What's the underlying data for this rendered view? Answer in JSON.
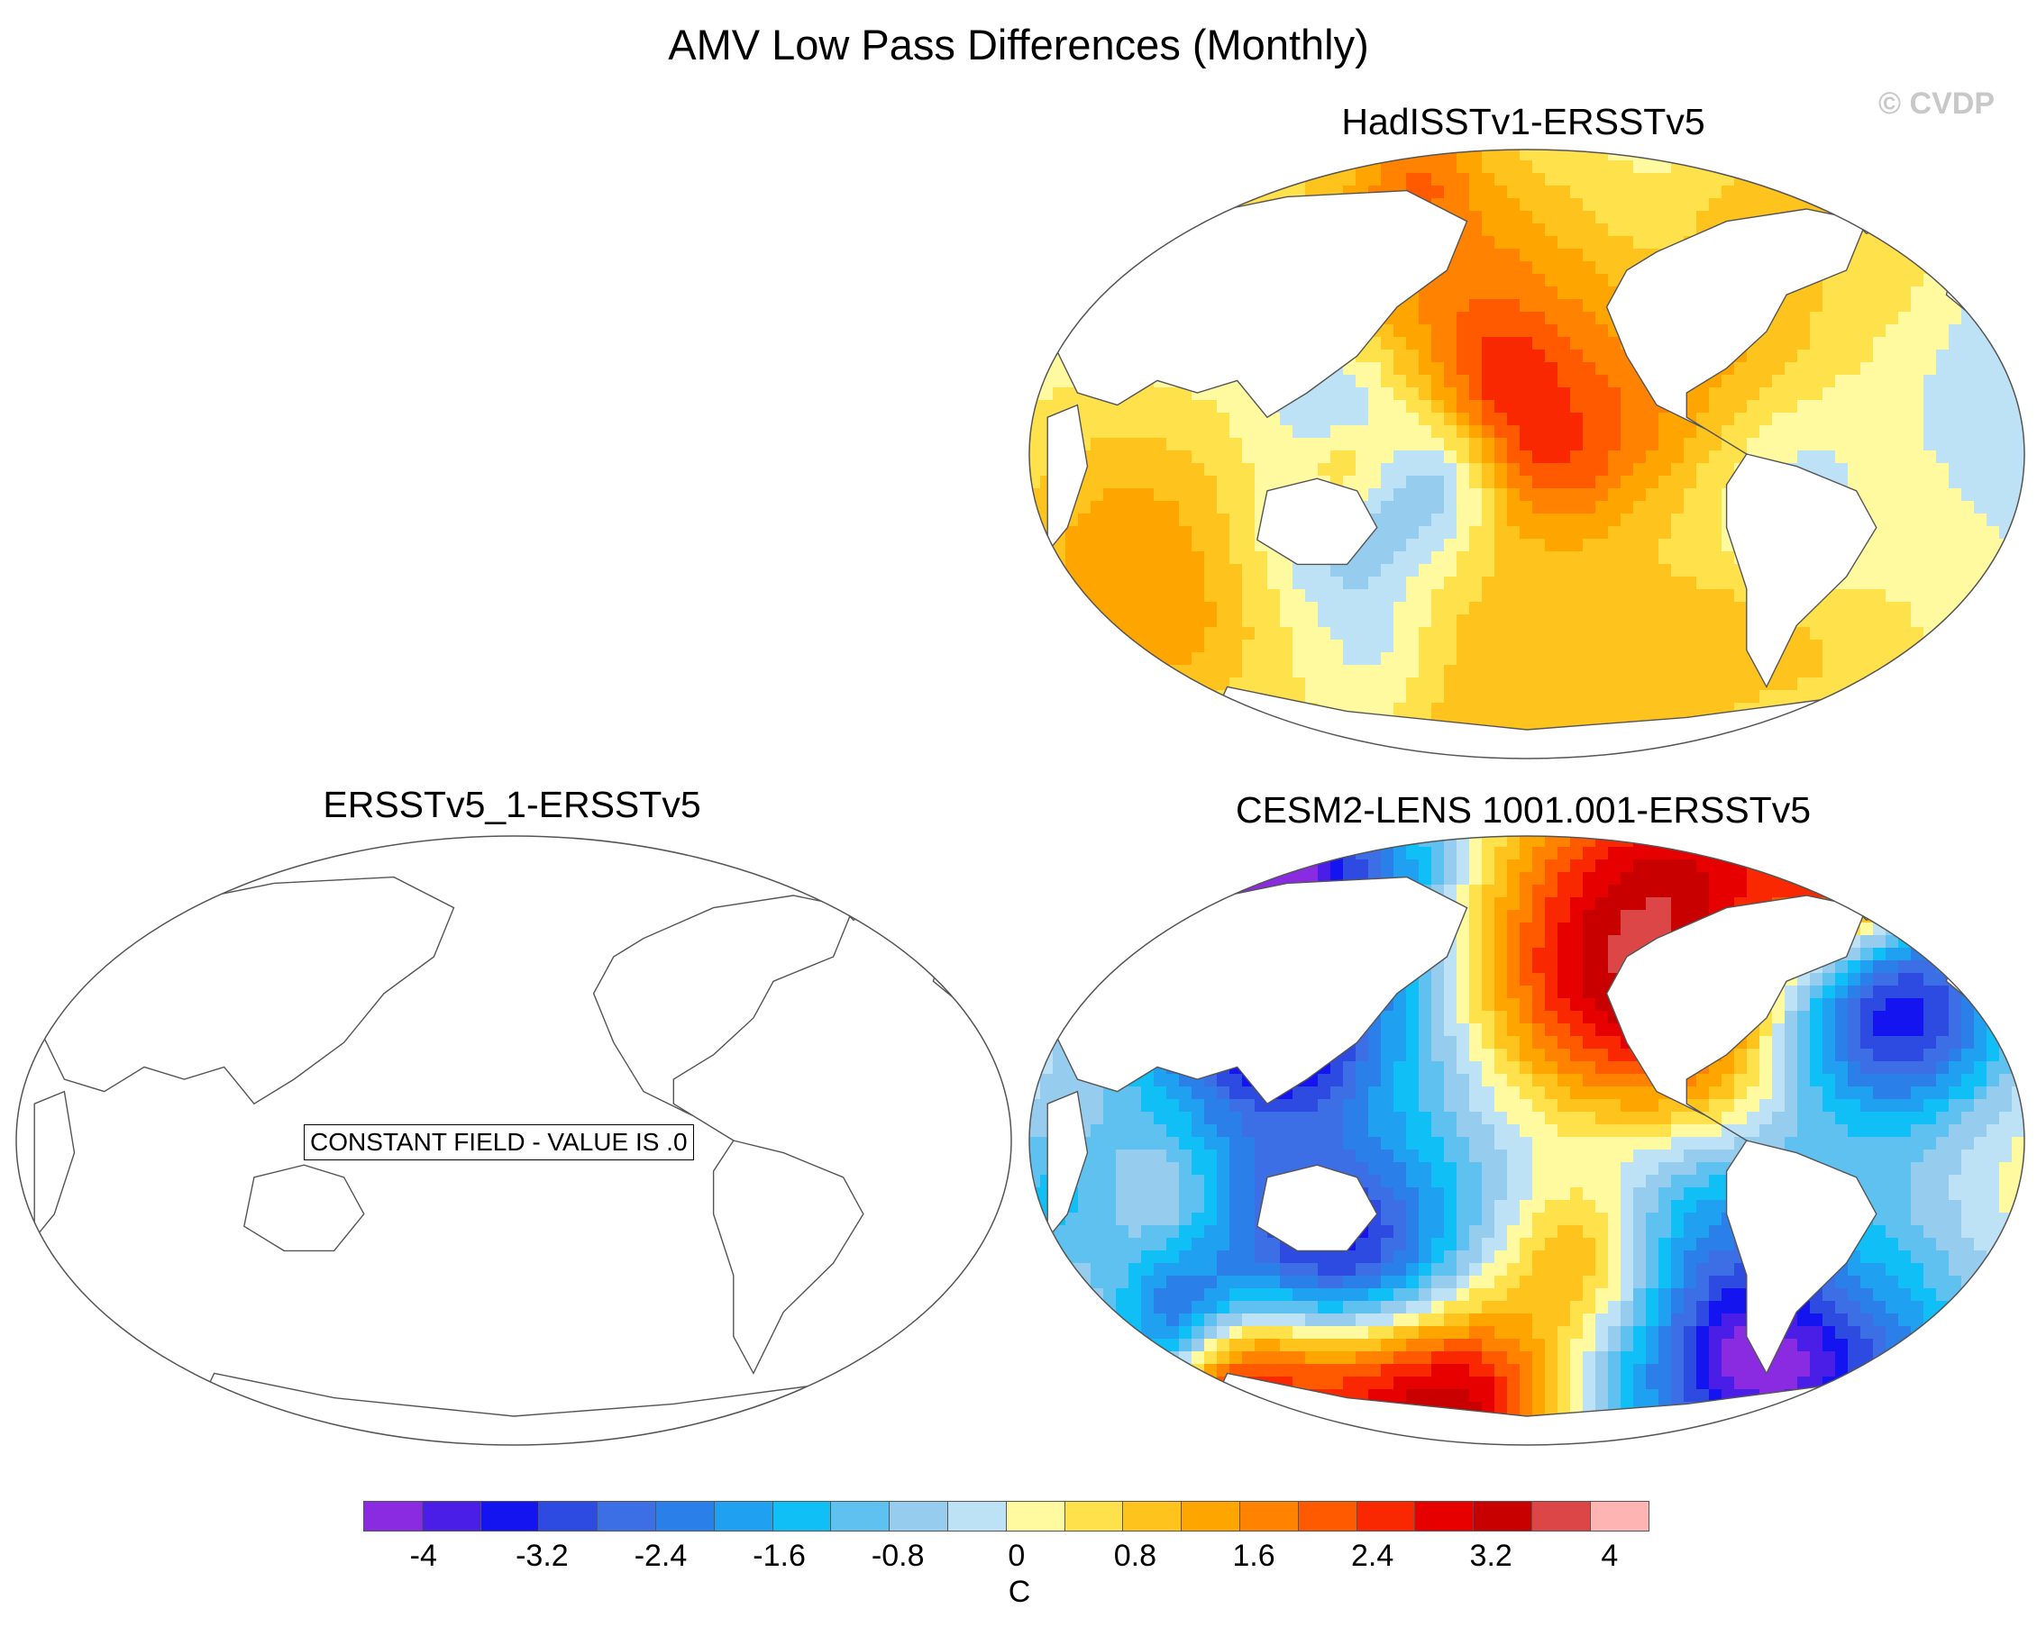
{
  "figure": {
    "title": "AMV Low Pass Differences (Monthly)",
    "watermark": "© CVDP"
  },
  "panels": [
    {
      "id": "hadisst",
      "title": "HadISSTv1-ERSSTv5",
      "field": "anomaly"
    },
    {
      "id": "ersst",
      "title": "ERSSTv5_1-ERSSTv5",
      "field": "constant",
      "note": "CONSTANT FIELD - VALUE IS .0"
    },
    {
      "id": "cesm",
      "title": "CESM2-LENS 1001.001-ERSSTv5",
      "field": "anomaly"
    }
  ],
  "colorbar": {
    "unit": "C",
    "colors": [
      "#8a2be2",
      "#4b1ee8",
      "#1414f0",
      "#2d4be0",
      "#3c6ee6",
      "#2b7fe8",
      "#1fa0f0",
      "#10bff5",
      "#5fc1f0",
      "#96cdee",
      "#bde2f5",
      "#fffaa0",
      "#ffe14b",
      "#ffc31e",
      "#ffa500",
      "#ff8200",
      "#ff5a00",
      "#fa2800",
      "#e60000",
      "#c80000",
      "#dc4646",
      "#ffb4b4"
    ],
    "tick_labels": [
      "-4",
      "-3.2",
      "-2.4",
      "-1.6",
      "-0.8",
      "0",
      "0.8",
      "1.6",
      "2.4",
      "3.2",
      "4"
    ]
  }
}
